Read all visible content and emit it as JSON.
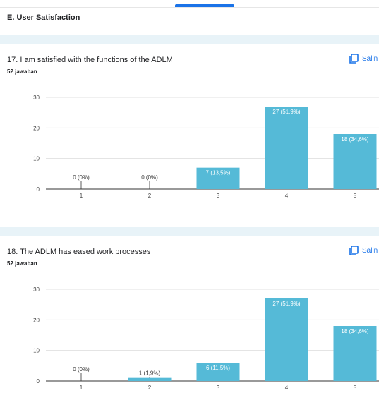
{
  "section": {
    "title": "E. User Satisfaction"
  },
  "colors": {
    "bar": "#55bad7",
    "accent": "#1a73e8",
    "band": "#e8f3f8"
  },
  "copy_button": {
    "label": "Salin",
    "icon": "copy-icon"
  },
  "questions": [
    {
      "title": "17. I am satisfied with the functions of the ADLM",
      "responses": "52 jawaban",
      "chart_data": {
        "type": "bar",
        "categories": [
          "1",
          "2",
          "3",
          "4",
          "5"
        ],
        "values": [
          0,
          0,
          7,
          27,
          18
        ],
        "labels": [
          "0 (0%)",
          "0 (0%)",
          "7 (13,5%)",
          "27 (51,9%)",
          "18 (34,6%)"
        ],
        "yticks": [
          0,
          10,
          20,
          30
        ],
        "ylim": [
          0,
          30
        ],
        "grid": true
      }
    },
    {
      "title": "18. The ADLM has eased work processes",
      "responses": "52 jawaban",
      "chart_data": {
        "type": "bar",
        "categories": [
          "1",
          "2",
          "3",
          "4",
          "5"
        ],
        "values": [
          0,
          1,
          6,
          27,
          18
        ],
        "labels": [
          "0 (0%)",
          "1 (1,9%)",
          "6 (11,5%)",
          "27 (51,9%)",
          "18 (34,6%)"
        ],
        "yticks": [
          0,
          10,
          20,
          30
        ],
        "ylim": [
          0,
          30
        ],
        "grid": true
      }
    }
  ]
}
